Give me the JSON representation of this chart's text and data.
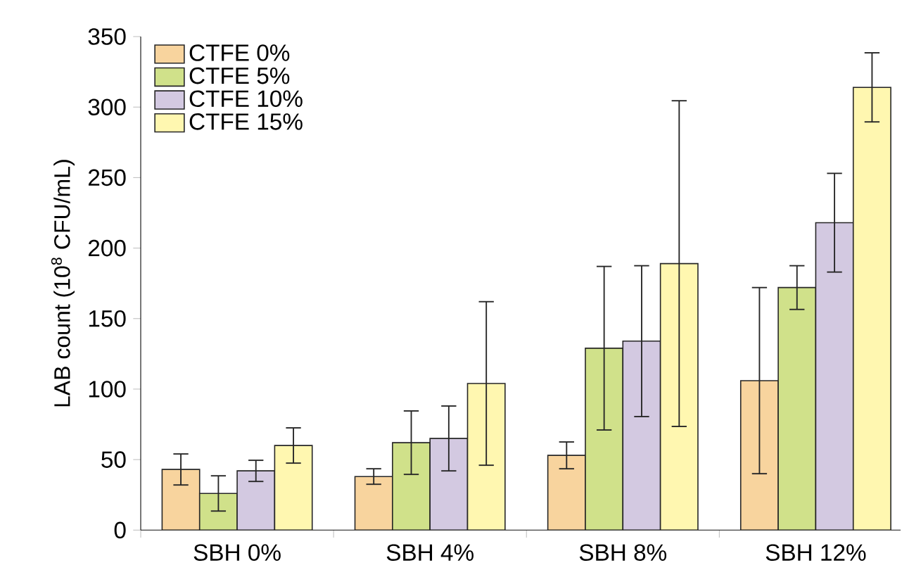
{
  "chart_data": {
    "type": "bar",
    "ylabel": "LAB count (10$^{8}$ CFU/mL)",
    "categories": [
      "SBH 0%",
      "SBH 4%",
      "SBH 8%",
      "SBH 12%"
    ],
    "series": [
      {
        "name": "CTFE 0%",
        "color": "#f8d49e",
        "values": [
          43,
          38,
          53,
          106
        ],
        "errors": [
          11,
          5.5,
          9.5,
          66
        ]
      },
      {
        "name": "CTFE 5%",
        "color": "#d0e18a",
        "values": [
          26,
          62,
          129,
          172
        ],
        "errors": [
          12.5,
          22.5,
          58,
          15.5
        ]
      },
      {
        "name": "CTFE 10%",
        "color": "#d3c9e1",
        "values": [
          42,
          65,
          134,
          218
        ],
        "errors": [
          7.5,
          23,
          53.5,
          35
        ]
      },
      {
        "name": "CTFE 15%",
        "color": "#fff7b0",
        "values": [
          60,
          104,
          189,
          314
        ],
        "errors": [
          12.5,
          58,
          115.5,
          24.5
        ]
      }
    ],
    "ylim": [
      0,
      350
    ],
    "yticks": [
      0,
      50,
      100,
      150,
      200,
      250,
      300,
      350
    ],
    "legend": "top left",
    "grid": false
  }
}
